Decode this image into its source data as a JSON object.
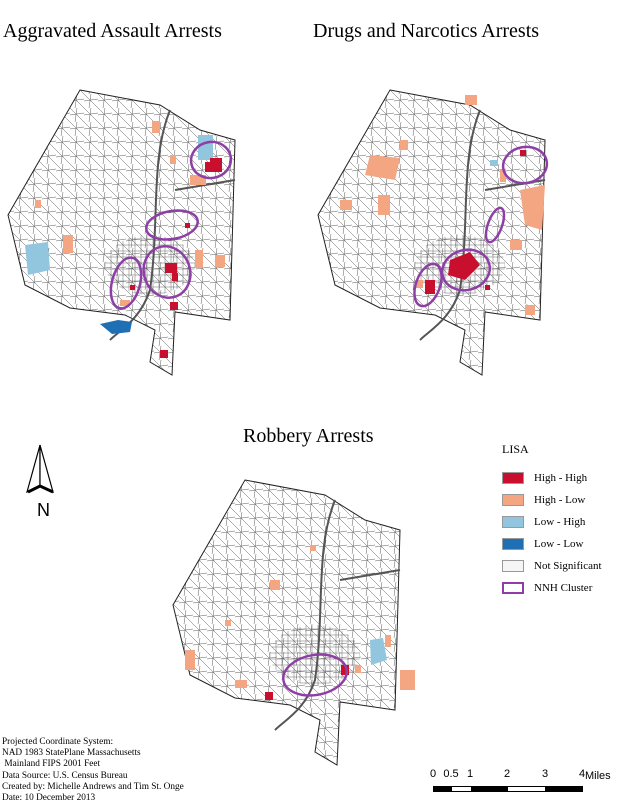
{
  "titles": {
    "top_left": "Aggravated Assault Arrests",
    "top_right": "Drugs and Narcotics Arrests",
    "bottom": "Robbery Arrests"
  },
  "north_arrow": {
    "label": "N"
  },
  "legend": {
    "title": "LISA",
    "items": [
      {
        "label": "High - High",
        "color": "#c8102e"
      },
      {
        "label": "High - Low",
        "color": "#f4a582"
      },
      {
        "label": "Low - High",
        "color": "#92c5de"
      },
      {
        "label": "Low - Low",
        "color": "#1f6fb4"
      },
      {
        "label": "Not Significant",
        "color": "#f5f5f5"
      },
      {
        "label": "NNH Cluster",
        "color": "#8e3fa6"
      }
    ]
  },
  "map_info": [
    "Projected Coordinate System:",
    "NAD 1983 StatePlane Massachusetts",
    " Mainland FIPS 2001 Feet",
    "Data Source: U.S. Census Bureau",
    "Created by: Michelle Andrews and Tim St. Onge",
    "Date: 10 December 2013"
  ],
  "scale_bar": {
    "ticks": [
      "0",
      "0.5",
      "1",
      "2",
      "3",
      "4"
    ],
    "unit": "Miles"
  },
  "colors": {
    "road": "#5a5a5a",
    "boundary": "#222222",
    "land": "#ffffff",
    "ellipse": "#8e3fa6"
  }
}
